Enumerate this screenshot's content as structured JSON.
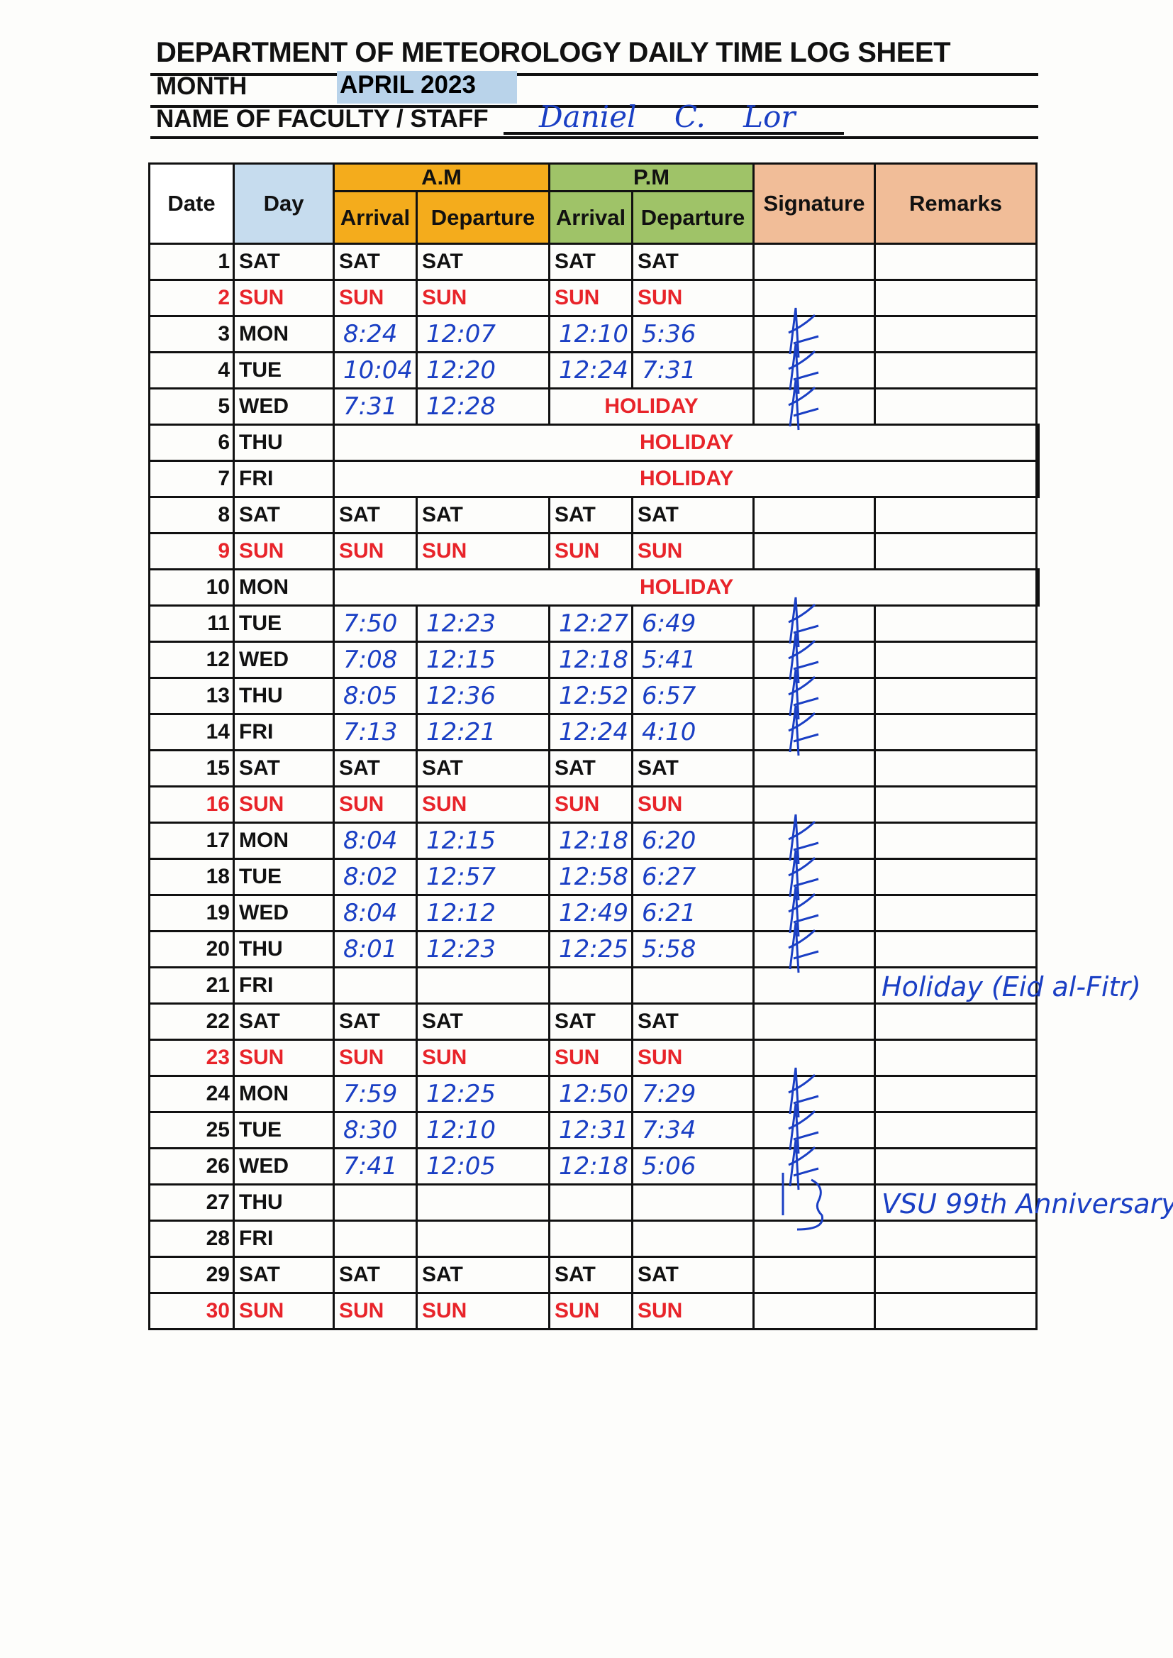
{
  "header": {
    "title": "DEPARTMENT OF METEOROLOGY DAILY TIME LOG SHEET",
    "month_label": "MONTH",
    "month_value": "APRIL 2023",
    "name_label": "NAME OF FACULTY / STAFF",
    "name_value": "Daniel C. Lor"
  },
  "columns": {
    "date": "Date",
    "day": "Day",
    "am": "A.M",
    "pm": "P.M",
    "arrival": "Arrival",
    "departure": "Departure",
    "signature": "Signature",
    "remarks": "Remarks"
  },
  "colors": {
    "sunday": "#e8242a",
    "ink": "#1a3fc4",
    "am": "#f4ac1c",
    "pm": "#9fc368",
    "day": "#c6dcee",
    "sig": "#f1bd98"
  },
  "rows": [
    {
      "date": "1",
      "day": "SAT",
      "weekend": true
    },
    {
      "date": "2",
      "day": "SUN",
      "weekend": true
    },
    {
      "date": "3",
      "day": "MON",
      "am_arr": "8:24",
      "am_dep": "12:07",
      "pm_arr": "12:10",
      "pm_dep": "5:36",
      "signed": true
    },
    {
      "date": "4",
      "day": "TUE",
      "am_arr": "10:04",
      "am_dep": "12:20",
      "pm_arr": "12:24",
      "pm_dep": "7:31",
      "signed": true
    },
    {
      "date": "5",
      "day": "WED",
      "am_arr": "7:31",
      "am_dep": "12:28",
      "pm_holiday": "HOLIDAY",
      "signed": true
    },
    {
      "date": "6",
      "day": "THU",
      "holiday": "HOLIDAY"
    },
    {
      "date": "7",
      "day": "FRI",
      "holiday": "HOLIDAY"
    },
    {
      "date": "8",
      "day": "SAT",
      "weekend": true
    },
    {
      "date": "9",
      "day": "SUN",
      "weekend": true
    },
    {
      "date": "10",
      "day": "MON",
      "holiday": "HOLIDAY"
    },
    {
      "date": "11",
      "day": "TUE",
      "am_arr": "7:50",
      "am_dep": "12:23",
      "pm_arr": "12:27",
      "pm_dep": "6:49",
      "signed": true
    },
    {
      "date": "12",
      "day": "WED",
      "am_arr": "7:08",
      "am_dep": "12:15",
      "pm_arr": "12:18",
      "pm_dep": "5:41",
      "signed": true
    },
    {
      "date": "13",
      "day": "THU",
      "am_arr": "8:05",
      "am_dep": "12:36",
      "pm_arr": "12:52",
      "pm_dep": "6:57",
      "signed": true
    },
    {
      "date": "14",
      "day": "FRI",
      "am_arr": "7:13",
      "am_dep": "12:21",
      "pm_arr": "12:24",
      "pm_dep": "4:10",
      "signed": true
    },
    {
      "date": "15",
      "day": "SAT",
      "weekend": true
    },
    {
      "date": "16",
      "day": "SUN",
      "weekend": true
    },
    {
      "date": "17",
      "day": "MON",
      "am_arr": "8:04",
      "am_dep": "12:15",
      "pm_arr": "12:18",
      "pm_dep": "6:20",
      "signed": true
    },
    {
      "date": "18",
      "day": "TUE",
      "am_arr": "8:02",
      "am_dep": "12:57",
      "pm_arr": "12:58",
      "pm_dep": "6:27",
      "signed": true
    },
    {
      "date": "19",
      "day": "WED",
      "am_arr": "8:04",
      "am_dep": "12:12",
      "pm_arr": "12:49",
      "pm_dep": "6:21",
      "signed": true
    },
    {
      "date": "20",
      "day": "THU",
      "am_arr": "8:01",
      "am_dep": "12:23",
      "pm_arr": "12:25",
      "pm_dep": "5:58",
      "signed": true
    },
    {
      "date": "21",
      "day": "FRI",
      "remarks": "Holiday (Eid al-Fitr)"
    },
    {
      "date": "22",
      "day": "SAT",
      "weekend": true
    },
    {
      "date": "23",
      "day": "SUN",
      "weekend": true
    },
    {
      "date": "24",
      "day": "MON",
      "am_arr": "7:59",
      "am_dep": "12:25",
      "pm_arr": "12:50",
      "pm_dep": "7:29",
      "signed": true
    },
    {
      "date": "25",
      "day": "TUE",
      "am_arr": "8:30",
      "am_dep": "12:10",
      "pm_arr": "12:31",
      "pm_dep": "7:34",
      "signed": true
    },
    {
      "date": "26",
      "day": "WED",
      "am_arr": "7:41",
      "am_dep": "12:05",
      "pm_arr": "12:18",
      "pm_dep": "5:06",
      "signed": true
    },
    {
      "date": "27",
      "day": "THU",
      "remarks": "VSU 99th Anniversary",
      "brace": true
    },
    {
      "date": "28",
      "day": "FRI"
    },
    {
      "date": "29",
      "day": "SAT",
      "weekend": true
    },
    {
      "date": "30",
      "day": "SUN",
      "weekend": true
    }
  ]
}
